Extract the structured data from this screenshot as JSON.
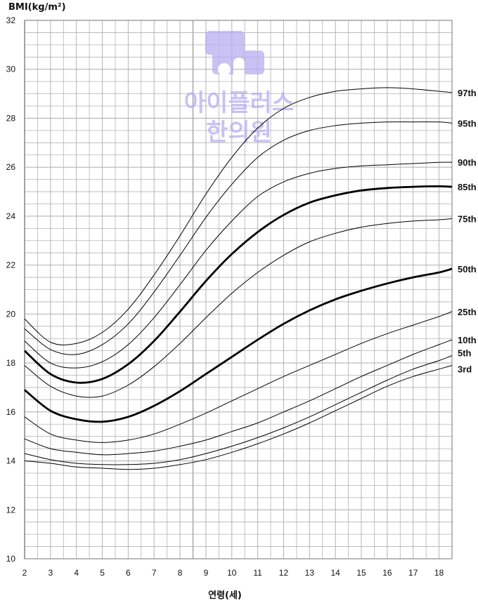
{
  "colors": {
    "grid": "#b3b3b3",
    "curve": "#000000",
    "watermark": "#b8aef2"
  },
  "watermark": {
    "icon": "hospital-cross-icon",
    "line1": "아이플러스",
    "line2": "한의원"
  },
  "chart_data": {
    "type": "line",
    "title": "",
    "ylabel": "BMI(kg/m²)",
    "xlabel": "연령(세)",
    "xlim": [
      2,
      18.5
    ],
    "ylim": [
      10,
      32
    ],
    "x_ticks": [
      2,
      3,
      4,
      5,
      6,
      7,
      8,
      9,
      10,
      11,
      12,
      13,
      14,
      15,
      16,
      17,
      18
    ],
    "y_ticks": [
      10,
      12,
      14,
      16,
      18,
      20,
      22,
      24,
      26,
      28,
      30,
      32
    ],
    "grid": true,
    "x": [
      2,
      3,
      4,
      5,
      6,
      7,
      8,
      9,
      10,
      11,
      12,
      13,
      14,
      15,
      16,
      17,
      18,
      18.5
    ],
    "series": [
      {
        "name": "97th",
        "bold": false,
        "values": [
          19.8,
          18.85,
          18.8,
          19.25,
          20.2,
          21.6,
          23.2,
          24.9,
          26.4,
          27.6,
          28.4,
          28.85,
          29.1,
          29.2,
          29.25,
          29.2,
          29.1,
          29.05
        ]
      },
      {
        "name": "95th",
        "bold": false,
        "values": [
          19.4,
          18.55,
          18.35,
          18.75,
          19.6,
          20.9,
          22.4,
          23.95,
          25.3,
          26.4,
          27.1,
          27.5,
          27.7,
          27.8,
          27.85,
          27.85,
          27.85,
          27.8
        ]
      },
      {
        "name": "90th",
        "bold": false,
        "values": [
          18.9,
          18.0,
          17.8,
          18.05,
          18.75,
          19.85,
          21.2,
          22.6,
          23.8,
          24.8,
          25.4,
          25.75,
          25.95,
          26.05,
          26.1,
          26.15,
          26.2,
          26.2
        ]
      },
      {
        "name": "85th",
        "bold": true,
        "values": [
          18.5,
          17.55,
          17.2,
          17.35,
          17.95,
          18.9,
          20.1,
          21.35,
          22.45,
          23.35,
          24.05,
          24.55,
          24.85,
          25.05,
          25.15,
          25.2,
          25.22,
          25.2
        ]
      },
      {
        "name": "75th",
        "bold": false,
        "values": [
          17.9,
          17.05,
          16.65,
          16.65,
          17.1,
          17.85,
          18.8,
          19.85,
          20.85,
          21.7,
          22.4,
          22.95,
          23.3,
          23.55,
          23.7,
          23.8,
          23.85,
          23.9
        ]
      },
      {
        "name": "50th",
        "bold": true,
        "values": [
          16.9,
          16.05,
          15.7,
          15.6,
          15.8,
          16.25,
          16.85,
          17.55,
          18.25,
          18.95,
          19.6,
          20.15,
          20.6,
          20.95,
          21.25,
          21.5,
          21.7,
          21.85
        ]
      },
      {
        "name": "25th",
        "bold": false,
        "values": [
          15.8,
          15.1,
          14.85,
          14.75,
          14.85,
          15.1,
          15.5,
          15.95,
          16.45,
          16.95,
          17.45,
          17.9,
          18.35,
          18.8,
          19.2,
          19.55,
          19.9,
          20.1
        ]
      },
      {
        "name": "10th",
        "bold": false,
        "values": [
          14.9,
          14.5,
          14.35,
          14.25,
          14.3,
          14.4,
          14.6,
          14.85,
          15.2,
          15.55,
          16.0,
          16.45,
          16.95,
          17.45,
          17.9,
          18.35,
          18.75,
          18.95
        ]
      },
      {
        "name": "5th",
        "bold": false,
        "values": [
          14.3,
          14.05,
          13.9,
          13.85,
          13.85,
          13.9,
          14.05,
          14.3,
          14.6,
          14.95,
          15.35,
          15.8,
          16.3,
          16.8,
          17.3,
          17.75,
          18.1,
          18.3
        ]
      },
      {
        "name": "3rd",
        "bold": false,
        "values": [
          14.0,
          13.9,
          13.75,
          13.7,
          13.65,
          13.7,
          13.85,
          14.05,
          14.35,
          14.7,
          15.1,
          15.55,
          16.05,
          16.55,
          17.05,
          17.45,
          17.75,
          17.9
        ]
      }
    ]
  }
}
